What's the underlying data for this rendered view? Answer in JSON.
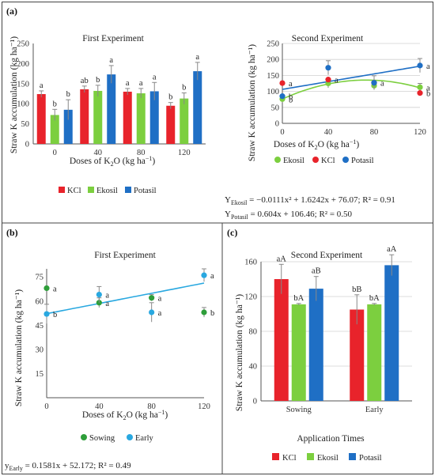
{
  "panels": [
    {
      "id": "a",
      "label": "(a)",
      "sub": "First Experiment",
      "type": "bar",
      "categories": [
        "0",
        "40",
        "80",
        "120"
      ],
      "ylim": [
        0,
        250
      ],
      "yticks": [
        0,
        50,
        100,
        150,
        200,
        250
      ],
      "ylabel": "Straw K accumulation (kg ha⁻¹)",
      "xlabel": "Doses of K₂O (kg ha⁻¹)",
      "series": [
        {
          "name": "KCl",
          "color": "#e8232b",
          "values": [
            124,
            136,
            130,
            95
          ],
          "err": [
            8,
            8,
            8,
            8
          ],
          "sig": [
            "a",
            "ab",
            "a",
            "b"
          ]
        },
        {
          "name": "Ekosil",
          "color": "#7ccf3f",
          "values": [
            72,
            132,
            126,
            113
          ],
          "err": [
            14,
            14,
            12,
            14
          ],
          "sig": [
            "b",
            "b",
            "a",
            "b"
          ]
        },
        {
          "name": "Potasil",
          "color": "#1f6fc5",
          "values": [
            85,
            173,
            131,
            181
          ],
          "err": [
            25,
            22,
            22,
            22
          ],
          "sig": [
            "b",
            "a",
            "a",
            "a"
          ]
        }
      ]
    },
    {
      "id": "a2",
      "sub": "Second Experiment",
      "type": "scatter",
      "xticks": [
        0,
        40,
        80,
        120
      ],
      "xlim": [
        0,
        120
      ],
      "ylim": [
        0,
        250
      ],
      "yticks": [
        0,
        50,
        100,
        150,
        200,
        250
      ],
      "ylabel": "Straw K accumulation (kg ha⁻¹)",
      "xlabel": "Doses of K₂O (kg ha⁻¹)",
      "series": [
        {
          "name": "Ekosil",
          "color": "#7ccf3f",
          "x": [
            0,
            40,
            80,
            120
          ],
          "y": [
            76,
            125,
            118,
            113
          ],
          "err": [
            10,
            14,
            12,
            12
          ],
          "sig": [
            "b",
            "",
            "",
            "a"
          ]
        },
        {
          "name": "KCl",
          "color": "#e8232b",
          "x": [
            0,
            40,
            80,
            120
          ],
          "y": [
            126,
            137,
            127,
            95
          ],
          "err": [
            0,
            0,
            0,
            0
          ],
          "sig": [
            "a",
            "a",
            "",
            "b"
          ]
        },
        {
          "name": "Potasil",
          "color": "#1f6fc5",
          "x": [
            0,
            40,
            80,
            120
          ],
          "y": [
            85,
            174,
            127,
            181
          ],
          "err": [
            0,
            22,
            22,
            22
          ],
          "sig": [
            "b",
            "",
            "a",
            "a"
          ]
        }
      ],
      "trend": [
        {
          "series": "Ekosil",
          "kind": "quad",
          "coef": [
            -0.0111,
            1.6242,
            76.07
          ]
        },
        {
          "series": "Potasil",
          "kind": "lin",
          "coef": [
            0.604,
            106.46
          ]
        }
      ],
      "eq1": {
        "head": "Y",
        "sub": "Ekosil",
        "tail": " = −0.0111x² + 1.6242x + 76.07; R² = 0.91"
      },
      "eq2": {
        "head": "Y",
        "sub": "Potasil",
        "tail": " = 0.604x + 106.46; R² = 0.50"
      }
    },
    {
      "id": "b",
      "label": "(b)",
      "sub": "First Experiment",
      "type": "scatter",
      "xticks": [
        0,
        40,
        80,
        120
      ],
      "xlim": [
        0,
        120
      ],
      "ylim": [
        0,
        80
      ],
      "yticks": [
        15,
        30,
        45,
        60,
        75
      ],
      "ylabel": "Straw K accumulation (kg ha⁻¹)",
      "xlabel": "Doses of K₂O (kg ha⁻¹)",
      "series": [
        {
          "name": "Sowing",
          "color": "#2e9e3a",
          "x": [
            0,
            40,
            80,
            120
          ],
          "y": [
            68,
            59,
            62,
            53
          ],
          "err": [
            0,
            3,
            2,
            3
          ],
          "sig": [
            "a",
            "a",
            "a",
            "b"
          ]
        },
        {
          "name": "Early",
          "color": "#29a8e0",
          "x": [
            0,
            40,
            80,
            120
          ],
          "y": [
            52,
            64,
            53,
            76
          ],
          "err": [
            6,
            5,
            6,
            4
          ],
          "sig": [
            "b",
            "a",
            "a",
            "a"
          ]
        }
      ],
      "trend": [
        {
          "series": "Early",
          "kind": "lin",
          "coef": [
            0.1581,
            52.172
          ]
        }
      ],
      "eq": {
        "head": "y",
        "sub": "Early",
        "tail": " = 0.1581x + 52.172; R² = 0.49"
      }
    },
    {
      "id": "c",
      "label": "(c)",
      "sub": "Second Experiment",
      "type": "bar",
      "categories": [
        "Sowing",
        "Early"
      ],
      "ylim": [
        0,
        160
      ],
      "yticks": [
        0,
        40,
        80,
        120,
        160
      ],
      "ylabel": "Straw K accumulation (kg ha⁻¹)",
      "xlabel": "Application Times",
      "series": [
        {
          "name": "KCl",
          "color": "#e8232b",
          "values": [
            140,
            105
          ],
          "err": [
            17,
            17
          ],
          "sig": [
            "aA",
            "bB"
          ]
        },
        {
          "name": "Ekosil",
          "color": "#7ccf3f",
          "values": [
            111,
            111
          ],
          "err": [
            1,
            1
          ],
          "sig": [
            "bA",
            "bA"
          ]
        },
        {
          "name": "Potasil",
          "color": "#1f6fc5",
          "values": [
            129,
            156
          ],
          "err": [
            14,
            12
          ],
          "sig": [
            "aB",
            "aA"
          ]
        }
      ]
    }
  ]
}
